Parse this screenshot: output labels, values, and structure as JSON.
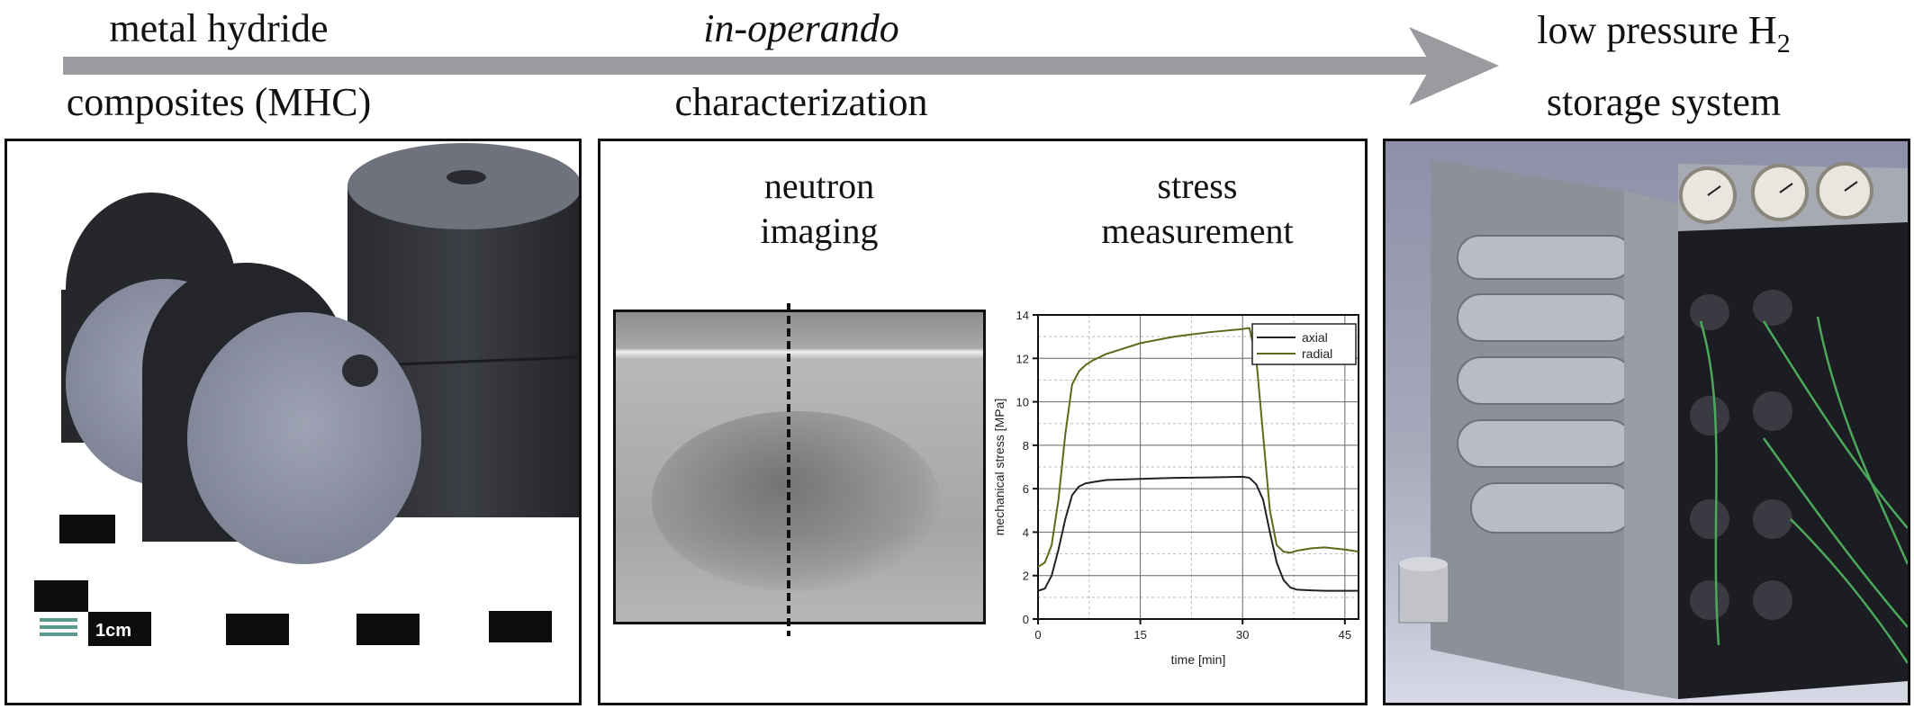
{
  "header": {
    "stage1": {
      "line1": "metal hydride",
      "line2": "composites (MHC)"
    },
    "stage2": {
      "line1": "in-operando",
      "line2": "characterization"
    },
    "stage3": {
      "line1": "low pressure H",
      "line1_subscript": "2",
      "line2": "storage system"
    },
    "arrow": {
      "color": "#9a9b9e"
    }
  },
  "panels": {
    "mhc_photo": {
      "description": "Photo of four metal hydride composite pellets (cylinders with central hole) on a scale card",
      "scale_label": "1cm"
    },
    "characterization": {
      "neutron_title_1": "neutron",
      "neutron_title_2": "imaging",
      "stress_title_1": "stress",
      "stress_title_2": "measurement"
    },
    "storage_system": {
      "description": "Photo of low pressure H2 storage system: metal frame with tube bundle, three pressure gauges and thermocouple wiring",
      "gauge_count": 3
    }
  },
  "chart_data": {
    "type": "line",
    "title": "",
    "xlabel": "time [min]",
    "ylabel": "mechanical stress [MPa]",
    "xlim": [
      0,
      47
    ],
    "ylim": [
      0,
      14
    ],
    "x_ticks": [
      0,
      15,
      30,
      45
    ],
    "y_ticks": [
      0,
      2,
      4,
      6,
      8,
      10,
      12,
      14
    ],
    "grid": true,
    "legend_position": "upper right",
    "x": [
      0,
      1,
      2,
      3,
      4,
      5,
      6,
      7,
      8,
      10,
      15,
      20,
      25,
      30,
      31,
      32,
      33,
      34,
      35,
      36,
      37,
      38,
      40,
      42,
      45,
      47
    ],
    "series": [
      {
        "name": "axial",
        "color": "#222222",
        "values": [
          1.3,
          1.4,
          2.0,
          3.2,
          4.6,
          5.7,
          6.1,
          6.25,
          6.3,
          6.4,
          6.45,
          6.5,
          6.52,
          6.55,
          6.5,
          6.2,
          5.5,
          4.0,
          2.6,
          1.8,
          1.45,
          1.35,
          1.32,
          1.3,
          1.3,
          1.3
        ]
      },
      {
        "name": "radial",
        "color": "#5a6b1a",
        "values": [
          2.4,
          2.6,
          3.4,
          5.5,
          8.5,
          10.8,
          11.4,
          11.7,
          11.9,
          12.2,
          12.7,
          13.0,
          13.2,
          13.35,
          13.4,
          12.0,
          8.5,
          5.0,
          3.4,
          3.1,
          3.05,
          3.15,
          3.25,
          3.3,
          3.2,
          3.1
        ]
      }
    ]
  }
}
